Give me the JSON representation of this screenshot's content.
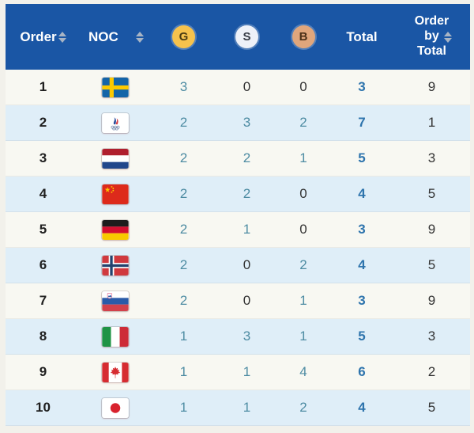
{
  "header": {
    "order_label": "Order",
    "noc_label": "NOC",
    "gold_label": "G",
    "silver_label": "S",
    "bronze_label": "B",
    "total_label": "Total",
    "order_by_total_lines": [
      "Order",
      "by",
      "Total"
    ]
  },
  "rows": [
    {
      "order": "1",
      "flag": "sweden",
      "gold": "3",
      "silver": "0",
      "bronze": "0",
      "total": "3",
      "order_by_total": "9"
    },
    {
      "order": "2",
      "flag": "roc",
      "gold": "2",
      "silver": "3",
      "bronze": "2",
      "total": "7",
      "order_by_total": "1"
    },
    {
      "order": "3",
      "flag": "netherlands",
      "gold": "2",
      "silver": "2",
      "bronze": "1",
      "total": "5",
      "order_by_total": "3"
    },
    {
      "order": "4",
      "flag": "china",
      "gold": "2",
      "silver": "2",
      "bronze": "0",
      "total": "4",
      "order_by_total": "5"
    },
    {
      "order": "5",
      "flag": "germany",
      "gold": "2",
      "silver": "1",
      "bronze": "0",
      "total": "3",
      "order_by_total": "9"
    },
    {
      "order": "6",
      "flag": "norway",
      "gold": "2",
      "silver": "0",
      "bronze": "2",
      "total": "4",
      "order_by_total": "5"
    },
    {
      "order": "7",
      "flag": "slovenia",
      "gold": "2",
      "silver": "0",
      "bronze": "1",
      "total": "3",
      "order_by_total": "9"
    },
    {
      "order": "8",
      "flag": "italy",
      "gold": "1",
      "silver": "3",
      "bronze": "1",
      "total": "5",
      "order_by_total": "3"
    },
    {
      "order": "9",
      "flag": "canada",
      "gold": "1",
      "silver": "1",
      "bronze": "4",
      "total": "6",
      "order_by_total": "2"
    },
    {
      "order": "10",
      "flag": "japan",
      "gold": "1",
      "silver": "1",
      "bronze": "2",
      "total": "4",
      "order_by_total": "5"
    }
  ],
  "colors": {
    "header_bg": "#1a56a5",
    "header_text": "#ffffff",
    "sort_icon": "#a8b4c4",
    "row_odd_bg": "#f8f8f2",
    "row_even_bg": "#dfeef8",
    "medal_count_text": "#4e8ca3",
    "zero_text": "#333333",
    "total_text": "#2e74ad",
    "gold_badge": "#f6c24d",
    "silver_badge": "#eef1f8",
    "bronze_badge": "#e0a67c"
  }
}
